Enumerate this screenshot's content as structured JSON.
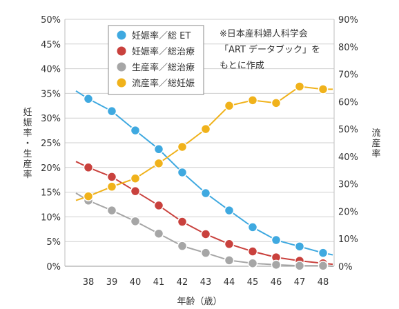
{
  "chart_data": {
    "type": "line",
    "x": [
      38,
      39,
      40,
      41,
      42,
      43,
      44,
      45,
      46,
      47,
      48
    ],
    "xlabel": "年齢（歳）",
    "ylabel_left": "妊娠率・生産率",
    "ylabel_right": "流産率",
    "ylim_left": [
      0,
      50
    ],
    "ylim_right": [
      0,
      90
    ],
    "yticks_left": [
      "0%",
      "5%",
      "10%",
      "15%",
      "20%",
      "25%",
      "30%",
      "35%",
      "40%",
      "45%",
      "50%"
    ],
    "yticks_right": [
      "0%",
      "10%",
      "20%",
      "30%",
      "40%",
      "50%",
      "60%",
      "70%",
      "80%",
      "90%"
    ],
    "note": [
      "※日本産科婦人科学会",
      "「ART データブック」を",
      "もとに作成"
    ],
    "legend_position": "top-left",
    "series": [
      {
        "name": "妊娠率／総 ET",
        "axis": "left",
        "color": "#3fa9e0",
        "values": [
          33.9,
          31.4,
          27.5,
          23.7,
          19.0,
          14.8,
          11.3,
          7.9,
          5.3,
          4.0,
          2.7
        ],
        "line_start": 35.5,
        "line_end": 2.3
      },
      {
        "name": "妊娠率／総治療",
        "axis": "left",
        "color": "#c9413d",
        "values": [
          20.0,
          18.1,
          15.2,
          12.3,
          9.0,
          6.5,
          4.5,
          3.0,
          1.8,
          1.1,
          0.6
        ],
        "line_start": 21.2,
        "line_end": 0.4
      },
      {
        "name": "生産率／総治療",
        "axis": "left",
        "color": "#a6a6a6",
        "values": [
          13.3,
          11.3,
          9.1,
          6.6,
          4.1,
          2.7,
          1.2,
          0.6,
          0.3,
          0.1,
          0.1
        ],
        "line_start": 14.8,
        "line_end": 0.0
      },
      {
        "name": "流産率／総妊娠",
        "axis": "right",
        "color": "#f0b21b",
        "values": [
          25.5,
          29.0,
          32.0,
          37.5,
          43.5,
          50.0,
          58.5,
          60.5,
          59.5,
          65.5,
          64.5
        ],
        "line_start": 24.0,
        "line_end": 64.5
      }
    ]
  }
}
